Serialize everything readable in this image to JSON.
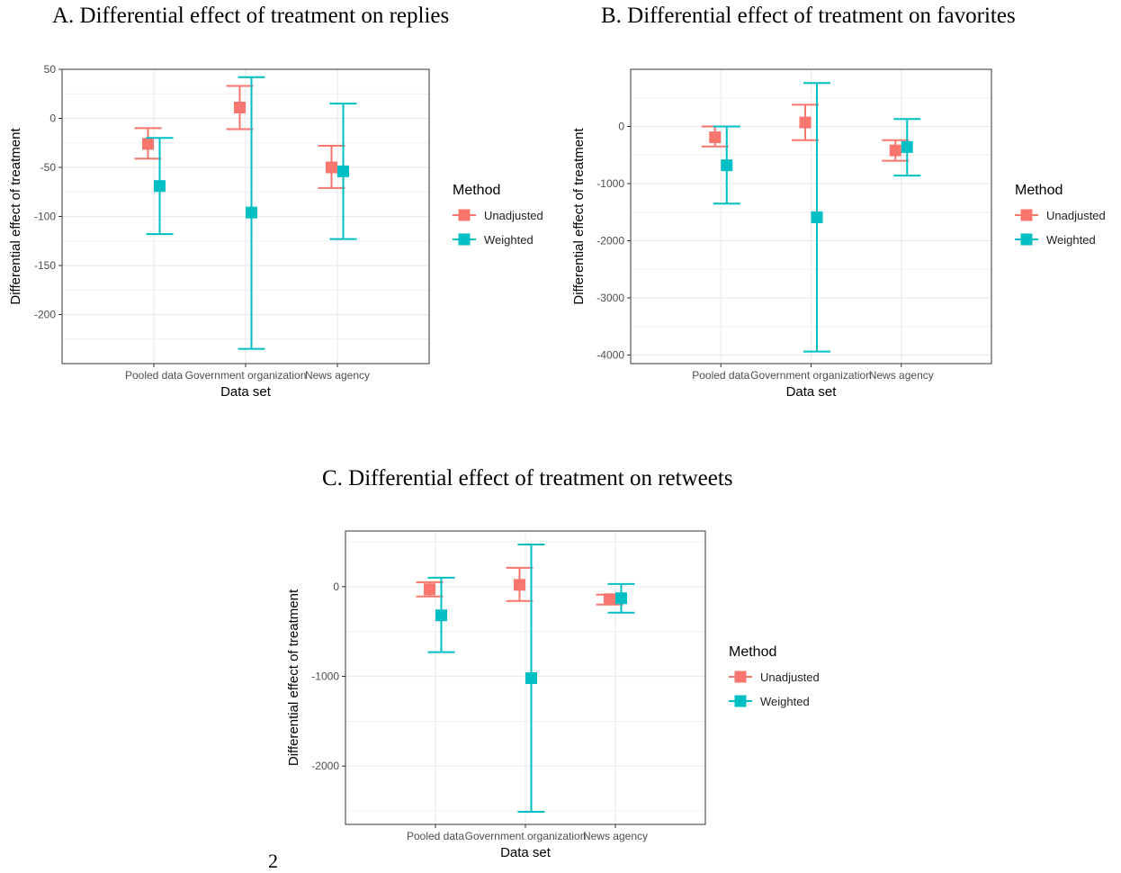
{
  "page_number": "2",
  "colors": {
    "Unadjusted": "#F8766D",
    "Weighted": "#00BFC4",
    "grid": "#ebebeb",
    "border": "#333333"
  },
  "chart_data": [
    {
      "type": "errorbar",
      "title": "A. Differential effect of treatment on replies",
      "xlabel": "Data set",
      "ylabel": "Differential effect of treatment",
      "categories": [
        "Pooled data",
        "Government organization",
        "News agency"
      ],
      "ylim": [
        -250,
        50
      ],
      "yticks": [
        50,
        0,
        -50,
        -100,
        -150,
        -200
      ],
      "legend": {
        "title": "Method",
        "entries": [
          "Unadjusted",
          "Weighted"
        ],
        "position": "right"
      },
      "series": [
        {
          "name": "Unadjusted",
          "estimates": [
            -26,
            11,
            -50
          ],
          "lower": [
            -41,
            -11,
            -71
          ],
          "upper": [
            -10,
            33,
            -28
          ]
        },
        {
          "name": "Weighted",
          "estimates": [
            -69,
            -96,
            -54
          ],
          "lower": [
            -118,
            -235,
            -123
          ],
          "upper": [
            -20,
            42,
            15
          ]
        }
      ]
    },
    {
      "type": "errorbar",
      "title": "B. Differential effect of treatment on favorites",
      "xlabel": "Data set",
      "ylabel": "Differential effect of treatment",
      "categories": [
        "Pooled data",
        "Government organization",
        "News agency"
      ],
      "ylim": [
        -4150,
        1000
      ],
      "yticks": [
        0,
        -1000,
        -2000,
        -3000,
        -4000
      ],
      "legend": {
        "title": "Method",
        "entries": [
          "Unadjusted",
          "Weighted"
        ],
        "position": "right"
      },
      "series": [
        {
          "name": "Unadjusted",
          "estimates": [
            -190,
            70,
            -420
          ],
          "lower": [
            -350,
            -240,
            -600
          ],
          "upper": [
            0,
            380,
            -240
          ]
        },
        {
          "name": "Weighted",
          "estimates": [
            -680,
            -1590,
            -360
          ],
          "lower": [
            -1350,
            -3940,
            -860
          ],
          "upper": [
            0,
            760,
            130
          ]
        }
      ]
    },
    {
      "type": "errorbar",
      "title": "C. Differential effect of treatment on retweets",
      "xlabel": "Data set",
      "ylabel": "Differential effect of treatment",
      "categories": [
        "Pooled data",
        "Government organization",
        "News agency"
      ],
      "ylim": [
        -2650,
        620
      ],
      "yticks": [
        0,
        -1000,
        -2000
      ],
      "legend": {
        "title": "Method",
        "entries": [
          "Unadjusted",
          "Weighted"
        ],
        "position": "right"
      },
      "series": [
        {
          "name": "Unadjusted",
          "estimates": [
            -30,
            20,
            -140
          ],
          "lower": [
            -110,
            -160,
            -200
          ],
          "upper": [
            50,
            210,
            -90
          ]
        },
        {
          "name": "Weighted",
          "estimates": [
            -320,
            -1020,
            -130
          ],
          "lower": [
            -730,
            -2510,
            -290
          ],
          "upper": [
            100,
            470,
            30
          ]
        }
      ]
    }
  ]
}
